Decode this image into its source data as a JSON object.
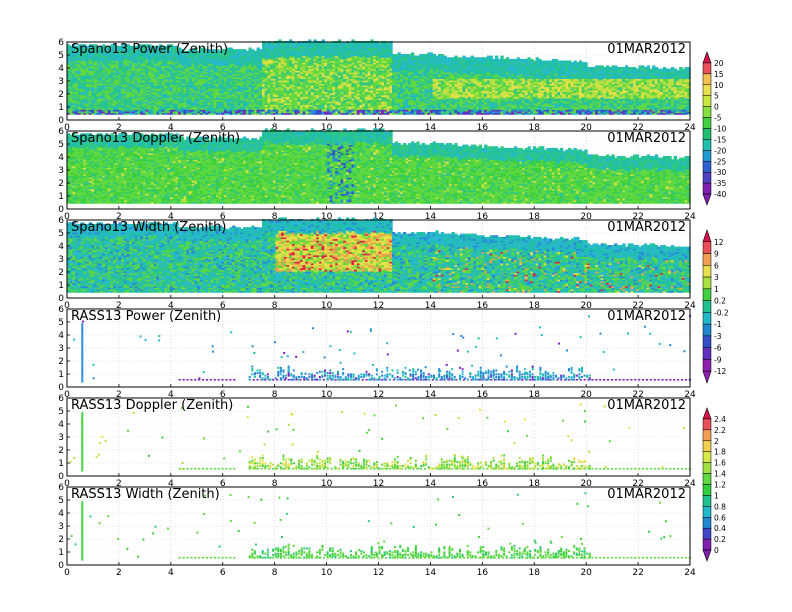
{
  "chart_data": {
    "date": "01MAR2012",
    "x_ticks": [
      0,
      2,
      4,
      6,
      8,
      10,
      12,
      14,
      16,
      18,
      20,
      22,
      24
    ],
    "y_ticks": [
      0,
      1,
      2,
      3,
      4,
      5,
      6
    ],
    "x_range": [
      0,
      24
    ],
    "y_range": [
      0,
      6
    ],
    "panels": [
      {
        "title": "Spano13 Power (Zenith)",
        "date": "01MAR2012",
        "type": "heatmap",
        "style": "spano_power"
      },
      {
        "title": "Spano13 Doppler (Zenith)",
        "date": "01MAR2012",
        "type": "heatmap",
        "style": "spano_doppler"
      },
      {
        "title": "Spano13 Width (Zenith)",
        "date": "01MAR2012",
        "type": "heatmap",
        "style": "spano_width"
      },
      {
        "title": "RASS13 Power (Zenith)",
        "date": "01MAR2012",
        "type": "heatmap",
        "style": "rass_power"
      },
      {
        "title": "RASS13 Doppler (Zenith)",
        "date": "01MAR2012",
        "type": "heatmap",
        "style": "rass_doppler"
      },
      {
        "title": "RASS13 Width (Zenith)",
        "date": "01MAR2012",
        "type": "heatmap",
        "style": "rass_width"
      }
    ],
    "colorbars": [
      {
        "labels": [
          "20",
          "15",
          "10",
          "5",
          "0",
          "-5",
          "-10",
          "-15",
          "-20",
          "-25",
          "-30",
          "-35",
          "-40"
        ],
        "colors": [
          "#d4144a",
          "#e8505a",
          "#f0c050",
          "#e8e050",
          "#c8e840",
          "#88e040",
          "#40d040",
          "#20c070",
          "#20c0b0",
          "#2098d0",
          "#3060d0",
          "#5040c0",
          "#8020b0"
        ]
      },
      {
        "labels": [
          "12",
          "9",
          "6",
          "3",
          "1",
          "0.2",
          "-0.2",
          "-1",
          "-3",
          "-6",
          "-9",
          "-12"
        ],
        "colors": [
          "#d4144a",
          "#e8505a",
          "#f0a050",
          "#e8e050",
          "#a8e040",
          "#40d040",
          "#20c090",
          "#20b8c8",
          "#2088d0",
          "#3050c8",
          "#6030c0",
          "#9020b0"
        ]
      },
      {
        "labels": [
          "2.4",
          "2.2",
          "2",
          "1.8",
          "1.6",
          "1.4",
          "1.2",
          "1",
          "0.8",
          "0.6",
          "0.4",
          "0.2",
          "0"
        ],
        "colors": [
          "#d4144a",
          "#e8505a",
          "#f0a050",
          "#f0d050",
          "#d8e848",
          "#a0e040",
          "#60d840",
          "#30d040",
          "#20c090",
          "#20b8c8",
          "#2088d0",
          "#4048c8",
          "#8020b0"
        ]
      }
    ]
  }
}
